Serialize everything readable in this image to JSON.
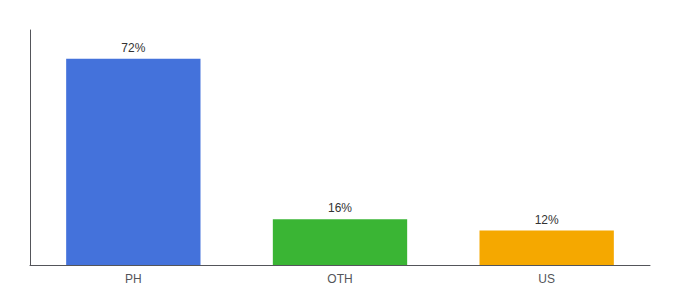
{
  "chart_data": {
    "type": "bar",
    "categories": [
      "PH",
      "OTH",
      "US"
    ],
    "values": [
      72,
      16,
      12
    ],
    "value_labels": [
      "72%",
      "16%",
      "12%"
    ],
    "colors": [
      "#4472db",
      "#3ab534",
      "#f5a800"
    ],
    "ylim": [
      0,
      82
    ],
    "grid": false,
    "data_labels": true,
    "tick_labels": "x"
  }
}
